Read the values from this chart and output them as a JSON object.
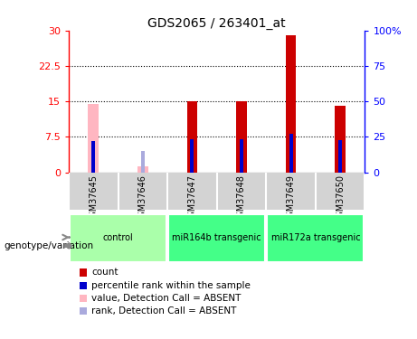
{
  "title": "GDS2065 / 263401_at",
  "samples": [
    "GSM37645",
    "GSM37646",
    "GSM37647",
    "GSM37648",
    "GSM37649",
    "GSM37650"
  ],
  "count_values": [
    null,
    null,
    15.0,
    15.0,
    29.0,
    14.0
  ],
  "count_absent": [
    14.5,
    1.2,
    null,
    null,
    null,
    null
  ],
  "percentile_values_pct": [
    22.0,
    null,
    23.5,
    23.5,
    27.5,
    22.5
  ],
  "percentile_absent_pct": [
    null,
    15.0,
    null,
    null,
    null,
    null
  ],
  "ylim_left": [
    0,
    30
  ],
  "ylim_right": [
    0,
    100
  ],
  "yticks_left": [
    0,
    7.5,
    15,
    22.5,
    30
  ],
  "yticks_right": [
    0,
    25,
    50,
    75,
    100
  ],
  "count_color": "#CC0000",
  "percentile_color": "#0000CC",
  "absent_count_color": "#FFB6C1",
  "absent_percentile_color": "#AAAADD",
  "bg_color": "#FFFFFF",
  "sample_bg": "#D3D3D3",
  "group_defs": [
    {
      "start": 0,
      "end": 1,
      "label": "control",
      "color": "#AAFFAA"
    },
    {
      "start": 2,
      "end": 3,
      "label": "miR164b transgenic",
      "color": "#44FF88"
    },
    {
      "start": 4,
      "end": 5,
      "label": "miR172a transgenic",
      "color": "#44FF88"
    }
  ],
  "legend_items": [
    {
      "label": "count",
      "color": "#CC0000"
    },
    {
      "label": "percentile rank within the sample",
      "color": "#0000CC"
    },
    {
      "label": "value, Detection Call = ABSENT",
      "color": "#FFB6C1"
    },
    {
      "label": "rank, Detection Call = ABSENT",
      "color": "#AAAADD"
    }
  ],
  "bar_width": 0.12,
  "percentile_bar_width": 0.12
}
